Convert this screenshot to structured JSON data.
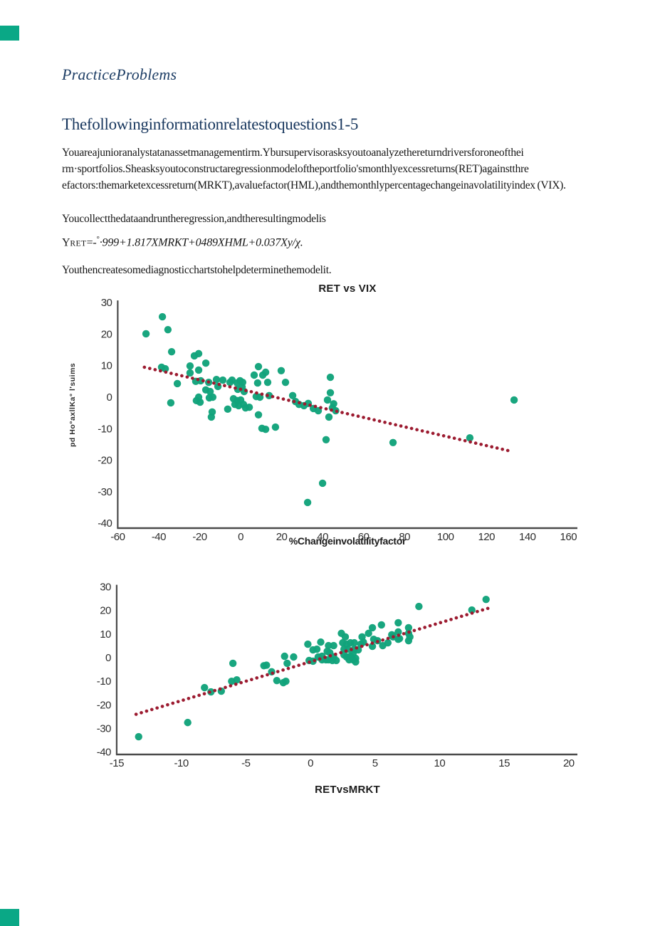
{
  "page": {
    "title": "PracticeProblems",
    "heading": "Thefollowinginformationrelatestoquestions1-5",
    "para1": "Youareajunioranalystatanassetmanagementirm.Ybursupervisorasksyoutoanalyzethereturndriversforoneofthei rm·sportfolios.Sheasksyoutoconstructaregressionmodeloftheportfolio'smonthlyexcessreturns(RET)againstthre efactors:themarketexcessreturn(MRKT),avaluefactor(HML),andthemonthlypercentagechangeinavolatilityindex (VIX).",
    "para2": "Youcollectthedataandruntheregression,andtheresultingmodelis",
    "equation": {
      "lhs": "Y",
      "sub": "RET",
      "mid": "=-",
      "sup": "°",
      "rest_italic": "·999+1.817XMRKT+0489XHML+0.037Xy/χ."
    },
    "para3": "Youthencreatesomediagnosticchartstohelpdeterminethemodelit."
  },
  "colors": {
    "accent_teal_dots": "#12a37b",
    "corner_square_teal": "#0aa886",
    "trend_line_red": "#9c1b30",
    "heading_navy": "#17365d",
    "axis_gray": "#4a4a4a"
  },
  "chart_data": [
    {
      "type": "scatter",
      "title": "RET vs VIX",
      "xlabel": "%Changeinvolatilityfactor",
      "ylabel": "pd Ho°axllKa° l'suims",
      "xlim": [
        -60,
        160
      ],
      "ylim": [
        -40,
        30
      ],
      "xticks": [
        -60,
        -40,
        -20,
        0,
        20,
        40,
        60,
        80,
        100,
        120,
        140,
        160
      ],
      "yticks": [
        30,
        20,
        10,
        0,
        -10,
        -20,
        -30,
        -40
      ],
      "grid": false,
      "legend": "none",
      "trend": {
        "style": "dotted",
        "x1": -47,
        "y1": 9.5,
        "x2": 133,
        "y2": -17.3
      },
      "points": [
        [
          -46.2,
          20.1
        ],
        [
          -38.2,
          25.5
        ],
        [
          -35.5,
          21.4
        ],
        [
          -33.7,
          14.4
        ],
        [
          -38.6,
          9.5
        ],
        [
          -36.8,
          9
        ],
        [
          -34.1,
          -1.8
        ],
        [
          -30.9,
          4.3
        ],
        [
          -24.7,
          9.9
        ],
        [
          -22.6,
          13.1
        ],
        [
          -20.5,
          13.8
        ],
        [
          -24.7,
          7.7
        ],
        [
          -20.5,
          8.6
        ],
        [
          -21.9,
          5
        ],
        [
          -17,
          10.8
        ],
        [
          -19.5,
          5.2
        ],
        [
          -17,
          2.3
        ],
        [
          -15.6,
          4.7
        ],
        [
          -21.6,
          -1.1
        ],
        [
          -19.8,
          -1.6
        ],
        [
          -20.5,
          0
        ],
        [
          -15.3,
          -0.2
        ],
        [
          -13.6,
          0
        ],
        [
          -14.9,
          1.8
        ],
        [
          -11.8,
          5.6
        ],
        [
          -11.1,
          3.4
        ],
        [
          -8.7,
          5.4
        ],
        [
          -13.9,
          -4.7
        ],
        [
          -14.3,
          -6.3
        ],
        [
          -6.3,
          -3.8
        ],
        [
          -5.2,
          4.7
        ],
        [
          -4.2,
          5.4
        ],
        [
          -1.7,
          4.5
        ],
        [
          -0.3,
          5.2
        ],
        [
          1,
          4.7
        ],
        [
          -1.4,
          2.5
        ],
        [
          0.7,
          3.2
        ],
        [
          1.7,
          1.8
        ],
        [
          -3.5,
          -0.5
        ],
        [
          -1.7,
          -1.1
        ],
        [
          0,
          -0.9
        ],
        [
          -2.8,
          -2.3
        ],
        [
          -1,
          -2.7
        ],
        [
          1.4,
          -2.3
        ],
        [
          2.4,
          -3.4
        ],
        [
          4.2,
          -3.2
        ],
        [
          6.6,
          7
        ],
        [
          8.7,
          9.7
        ],
        [
          10.8,
          7
        ],
        [
          12.2,
          7.9
        ],
        [
          8.3,
          4.5
        ],
        [
          13.2,
          4.7
        ],
        [
          7.6,
          0.2
        ],
        [
          9.4,
          0
        ],
        [
          13.9,
          0.5
        ],
        [
          8.7,
          -5.6
        ],
        [
          10.4,
          -9.9
        ],
        [
          12.2,
          -10.2
        ],
        [
          17,
          -9.5
        ],
        [
          19.8,
          8.4
        ],
        [
          21.9,
          4.7
        ],
        [
          25.4,
          0.5
        ],
        [
          26.8,
          -1.4
        ],
        [
          28.5,
          -2.3
        ],
        [
          30.9,
          -2.7
        ],
        [
          33,
          -2
        ],
        [
          35.5,
          -3.6
        ],
        [
          37.9,
          -4.3
        ],
        [
          43.8,
          6.3
        ],
        [
          43.8,
          1.4
        ],
        [
          42.4,
          -0.9
        ],
        [
          44.8,
          -3.4
        ],
        [
          45.4,
          -2.1
        ],
        [
          46.4,
          -4.3
        ],
        [
          43.1,
          -6.3
        ],
        [
          41.7,
          -13.5
        ],
        [
          74.4,
          -14.4
        ],
        [
          111.9,
          -12.9
        ],
        [
          133.5,
          -0.9
        ],
        [
          40,
          -27.3
        ],
        [
          32.7,
          -33.4
        ]
      ]
    },
    {
      "type": "scatter",
      "title": "RETvsMRKT",
      "xlabel": "",
      "ylabel": "",
      "xlim": [
        -15,
        20
      ],
      "ylim": [
        -40,
        30
      ],
      "xticks": [
        -15,
        -10,
        -5,
        0,
        5,
        10,
        15,
        20
      ],
      "yticks": [
        30,
        20,
        10,
        0,
        -10,
        -20,
        -30,
        -40
      ],
      "grid": false,
      "legend": "none",
      "trend": {
        "style": "dotted",
        "x1": -13.5,
        "y1": -24,
        "x2": 13.8,
        "y2": 21
      },
      "points": [
        [
          -13.3,
          -33.5
        ],
        [
          -9.5,
          -27.5
        ],
        [
          -8.2,
          -12.7
        ],
        [
          -7.7,
          -14.5
        ],
        [
          -6.9,
          -14.2
        ],
        [
          -6.1,
          -10
        ],
        [
          -5.7,
          -9.4
        ],
        [
          -6,
          -2.4
        ],
        [
          -3.6,
          -3.4
        ],
        [
          -3.4,
          -3.2
        ],
        [
          -3,
          -6
        ],
        [
          -2.6,
          -9.7
        ],
        [
          -2.1,
          -10.6
        ],
        [
          -1.9,
          -10
        ],
        [
          -2,
          0.6
        ],
        [
          -1.8,
          -2.4
        ],
        [
          -1.3,
          0.3
        ],
        [
          -0.2,
          5.7
        ],
        [
          0.2,
          3.3
        ],
        [
          -0.1,
          -1.2
        ],
        [
          0.2,
          -1.5
        ],
        [
          0.5,
          3.6
        ],
        [
          0.8,
          6.6
        ],
        [
          0.9,
          0.6
        ],
        [
          0.6,
          0.3
        ],
        [
          0.9,
          -0.9
        ],
        [
          1.2,
          -0.9
        ],
        [
          1.4,
          5.1
        ],
        [
          1.8,
          5.1
        ],
        [
          1.3,
          2.7
        ],
        [
          1.5,
          2.1
        ],
        [
          1.4,
          -0.9
        ],
        [
          1.7,
          -1.2
        ],
        [
          2,
          -1.2
        ],
        [
          1.8,
          0.3
        ],
        [
          2.4,
          10.3
        ],
        [
          2.7,
          8.8
        ],
        [
          2.5,
          6.3
        ],
        [
          2.8,
          5.7
        ],
        [
          2.6,
          3.6
        ],
        [
          2.9,
          3.6
        ],
        [
          3.1,
          6.3
        ],
        [
          3.4,
          6.3
        ],
        [
          2.6,
          1.2
        ],
        [
          2.8,
          0.3
        ],
        [
          3.1,
          0.6
        ],
        [
          3.3,
          1.8
        ],
        [
          3,
          -0.9
        ],
        [
          3.3,
          -0.9
        ],
        [
          3.5,
          -0.3
        ],
        [
          3.4,
          3.6
        ],
        [
          3.7,
          3.3
        ],
        [
          4,
          8.8
        ],
        [
          4.1,
          6.6
        ],
        [
          3.9,
          5.7
        ],
        [
          3.5,
          -1.8
        ],
        [
          4.5,
          10.3
        ],
        [
          4.8,
          12.7
        ],
        [
          4.9,
          7.8
        ],
        [
          5.2,
          7.2
        ],
        [
          4.8,
          4.8
        ],
        [
          5.5,
          13.9
        ],
        [
          5.6,
          5.1
        ],
        [
          6,
          6.3
        ],
        [
          6.3,
          9.7
        ],
        [
          6.4,
          8.8
        ],
        [
          6.8,
          14.8
        ],
        [
          6.9,
          8.1
        ],
        [
          7.6,
          10.3
        ],
        [
          7.7,
          8.8
        ],
        [
          7.6,
          12.7
        ],
        [
          6.8,
          10.9
        ],
        [
          6.8,
          7.8
        ],
        [
          7.6,
          7.2
        ],
        [
          8.4,
          21.7
        ],
        [
          12.5,
          20.2
        ],
        [
          13.6,
          24.7
        ]
      ]
    }
  ]
}
